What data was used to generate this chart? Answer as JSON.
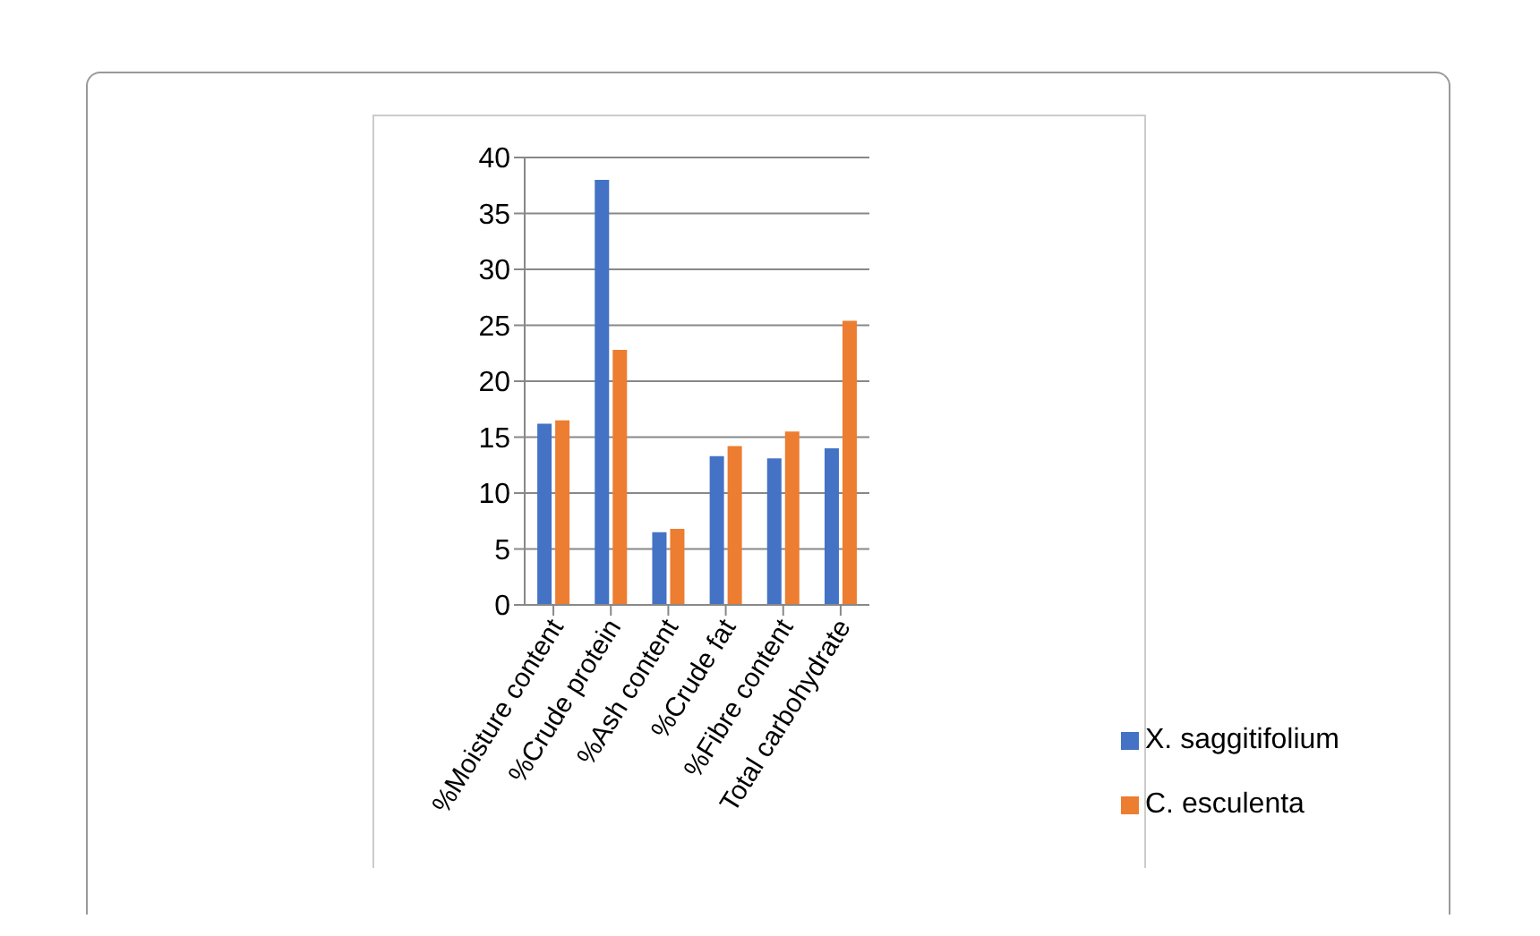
{
  "chart_data": {
    "type": "bar",
    "categories": [
      "%Moisture content",
      "%Crude protein",
      "%Ash content",
      "%Crude fat",
      "%Fibre content",
      "Total carbohydrate"
    ],
    "series": [
      {
        "name": "X. saggitifolium",
        "color": "#4472c4",
        "values": [
          16.2,
          38,
          6.5,
          13.3,
          13.1,
          14
        ]
      },
      {
        "name": "C. esculenta",
        "color": "#ed7d31",
        "values": [
          16.5,
          22.8,
          6.8,
          14.2,
          15.5,
          25.4
        ]
      }
    ],
    "ylim": [
      0,
      40
    ],
    "yticks": [
      0,
      5,
      10,
      15,
      20,
      25,
      30,
      35,
      40
    ],
    "grid": "y",
    "legend": "right"
  }
}
